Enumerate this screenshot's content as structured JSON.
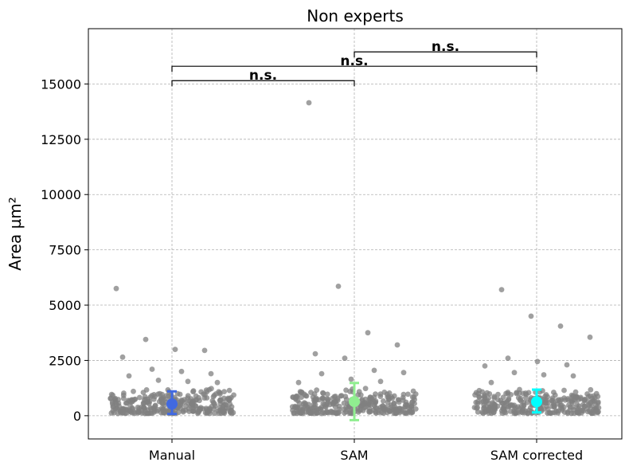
{
  "chart_data": {
    "type": "scatter",
    "title": "Non experts",
    "xlabel": "",
    "ylabel": "Area µm²",
    "categories": [
      "Manual",
      "SAM",
      "SAM corrected"
    ],
    "ylim": [
      -1050,
      17500
    ],
    "yticks": [
      0,
      2500,
      5000,
      7500,
      10000,
      12500,
      15000
    ],
    "grid": true,
    "point_color": "#808080",
    "summaries": [
      {
        "category": "Manual",
        "mean": 530,
        "low": 80,
        "high": 1100,
        "color": "#4169e1"
      },
      {
        "category": "SAM",
        "mean": 640,
        "low": -200,
        "high": 1480,
        "color": "#90ee90"
      },
      {
        "category": "SAM corrected",
        "mean": 630,
        "low": 150,
        "high": 1180,
        "color": "#00ffff"
      }
    ],
    "outliers": [
      {
        "category": "Manual",
        "values": [
          5750,
          3450,
          3000,
          2950,
          2650,
          2100,
          2000,
          1900,
          1800,
          1600,
          1550,
          1500
        ]
      },
      {
        "category": "SAM",
        "values": [
          14150,
          5850,
          3750,
          3200,
          2800,
          2600,
          2050,
          1950,
          1900,
          1650,
          1550,
          1500
        ]
      },
      {
        "category": "SAM corrected",
        "values": [
          5700,
          4500,
          4050,
          3550,
          2600,
          2450,
          2300,
          2250,
          1950,
          1850,
          1800,
          1500
        ]
      }
    ],
    "significance": [
      {
        "from": "Manual",
        "to": "SAM",
        "y": 15150,
        "label": "n.s."
      },
      {
        "from": "Manual",
        "to": "SAM corrected",
        "y": 15800,
        "label": "n.s."
      },
      {
        "from": "SAM",
        "to": "SAM corrected",
        "y": 16450,
        "label": "n.s."
      }
    ]
  }
}
